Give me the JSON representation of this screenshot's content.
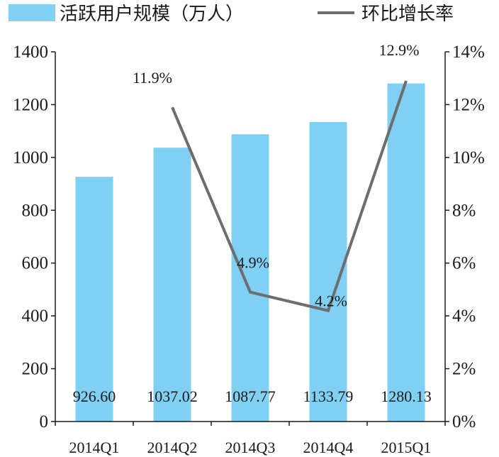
{
  "chart_data": {
    "type": "bar",
    "categories": [
      "2014Q1",
      "2014Q2",
      "2014Q3",
      "2014Q4",
      "2015Q1"
    ],
    "series": [
      {
        "name": "活跃用户规模（万人）",
        "type": "bar",
        "axis": "left",
        "values": [
          926.6,
          1037.02,
          1087.77,
          1133.79,
          1280.13
        ],
        "value_labels": [
          "926.60",
          "1037.02",
          "1087.77",
          "1133.79",
          "1280.13"
        ],
        "color": "#7fd0f2"
      },
      {
        "name": "环比增长率",
        "type": "line",
        "axis": "right",
        "values": [
          null,
          11.9,
          4.9,
          4.2,
          12.9
        ],
        "value_labels": [
          "",
          "11.9%",
          "4.9%",
          "4.2%",
          "12.9%"
        ],
        "color": "#6d6d6d"
      }
    ],
    "y_left": {
      "min": 0,
      "max": 1400,
      "step": 200,
      "ticks": [
        "0",
        "200",
        "400",
        "600",
        "800",
        "1000",
        "1200",
        "1400"
      ]
    },
    "y_right": {
      "min": 0,
      "max": 14,
      "step": 2,
      "ticks": [
        "0%",
        "2%",
        "4%",
        "6%",
        "8%",
        "10%",
        "12%",
        "14%"
      ]
    },
    "legend": {
      "position": "top",
      "entries": [
        "活跃用户规模（万人）",
        "环比增长率"
      ]
    },
    "grid": false
  }
}
